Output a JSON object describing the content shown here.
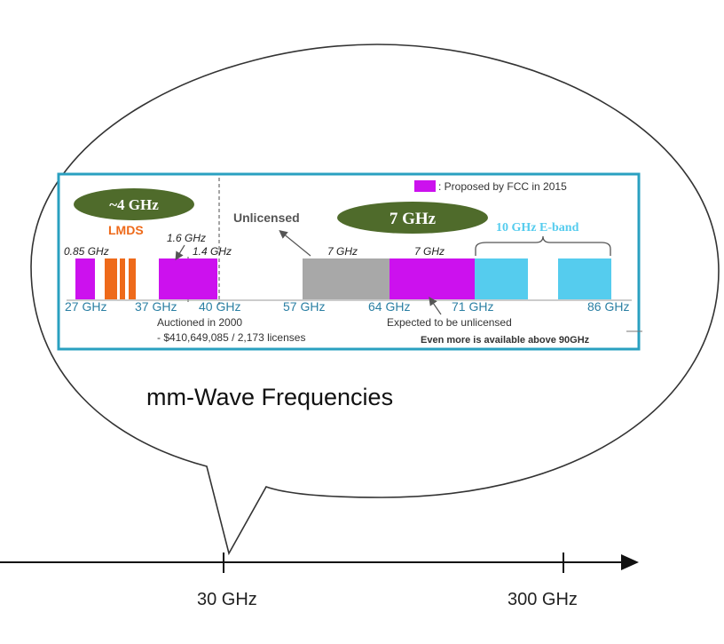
{
  "caption": "mm-Wave Frequencies",
  "axis": {
    "ticks": [
      "30 GHz",
      "300 GHz"
    ]
  },
  "figure": {
    "legend_label": ": Proposed by FCC in 2015",
    "ovals": {
      "four": "~4 GHz",
      "seven": "7 GHz"
    },
    "labels": {
      "lmds": "LMDS",
      "unlicensed": "Unlicensed",
      "eband": "10 GHz E-band",
      "auctioned_line1": "Auctioned in 2000",
      "auctioned_line2": "- $410,649,085 / 2,173 licenses",
      "expected": "Expected to be unlicensed",
      "more": "Even more is available above 90GHz"
    },
    "band_widths": [
      "0.85 GHz",
      "1.6 GHz",
      "1.4 GHz",
      "7 GHz",
      "7 GHz"
    ],
    "freq_labels": [
      "27 GHz",
      "37 GHz",
      "40 GHz",
      "57 GHz",
      "64 GHz",
      "71 GHz",
      "86 GHz"
    ]
  },
  "colors": {
    "proposed": "#cc11ee",
    "lmds": "#ee6a1a",
    "unlicensed": "#a8a8a8",
    "eband": "#55ccee",
    "oval": "#4f6b2b",
    "frame": "#2aa0c0",
    "freq_text": "#2a7fa3"
  }
}
